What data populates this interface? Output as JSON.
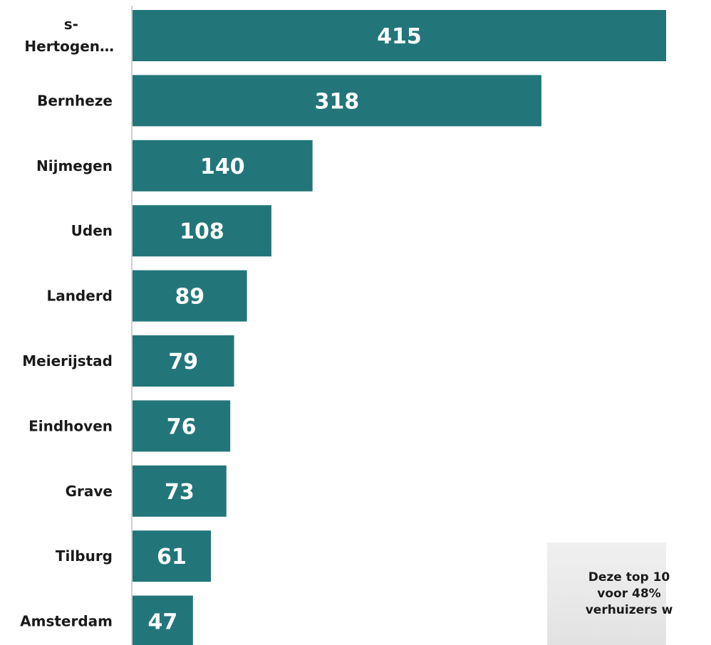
{
  "chart_data": {
    "type": "bar",
    "orientation": "horizontal",
    "categories": [
      "s-\nHertogen…",
      "Bernheze",
      "Nijmegen",
      "Uden",
      "Landerd",
      "Meierijstad",
      "Eindhoven",
      "Grave",
      "Tilburg",
      "Amsterdam"
    ],
    "values": [
      415,
      318,
      140,
      108,
      89,
      79,
      76,
      73,
      61,
      47
    ],
    "data_labels": [
      "415",
      "318",
      "140",
      "108",
      "89",
      "79",
      "76",
      "73",
      "61",
      "47"
    ],
    "xlim": [
      0,
      415
    ],
    "grid": false,
    "legend": "none",
    "bar_color": "#22767a"
  },
  "note": {
    "lines": [
      "Deze top 10",
      "voor 48%",
      "verhuizers w"
    ]
  },
  "colors": {
    "bar": "#22767a",
    "note_background": "#e8e8e8"
  }
}
